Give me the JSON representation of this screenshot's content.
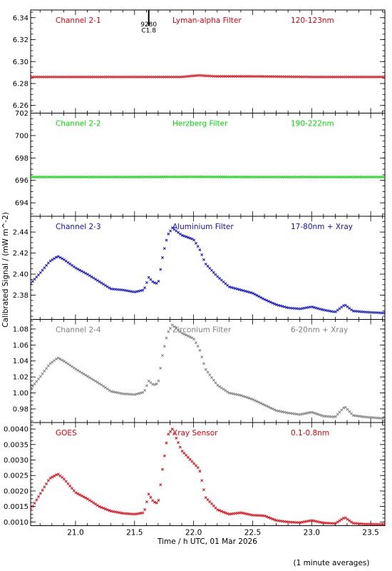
{
  "figure": {
    "xlabel": "Time / h UTC, 01 Mar 2026",
    "ylabel": "Calibrated Signal / (mW m^-2)",
    "footnote": "(1 minute averages)",
    "xlim": [
      20.62,
      23.62
    ],
    "xticks": [
      21.0,
      21.5,
      22.0,
      22.5,
      23.0,
      23.5
    ],
    "xtick_labels": [
      "21.0",
      "21.5",
      "22.0",
      "22.5",
      "23.0",
      "23.5"
    ],
    "flare_marker": {
      "x": 21.62,
      "labels": [
        "9280",
        "C1.8"
      ]
    }
  },
  "chart_data": [
    {
      "type": "scatter",
      "labels": [
        "Channel 2-1",
        "Lyman-alpha Filter",
        "120-123nm"
      ],
      "color": "#e8000b",
      "ylim": [
        6.253,
        6.347
      ],
      "yticks": [
        6.26,
        6.28,
        6.3,
        6.32,
        6.34
      ],
      "ytick_labels": [
        "6.26",
        "6.28",
        "6.30",
        "6.32",
        "6.34"
      ],
      "series": {
        "x": [
          20.62,
          21.0,
          21.5,
          21.9,
          22.0,
          22.05,
          22.1,
          22.2,
          22.5,
          23.0,
          23.5,
          23.62
        ],
        "y": [
          6.286,
          6.286,
          6.286,
          6.286,
          6.287,
          6.2875,
          6.287,
          6.2865,
          6.2865,
          6.286,
          6.286,
          6.286
        ]
      }
    },
    {
      "type": "scatter",
      "labels": [
        "Channel 2-2",
        "Herzberg Filter",
        "190-222nm"
      ],
      "color": "#00dd00",
      "ylim": [
        692.8,
        702.0
      ],
      "yticks": [
        694,
        696,
        698,
        700,
        702
      ],
      "ytick_labels": [
        "694",
        "696",
        "698",
        "700",
        "702"
      ],
      "series": {
        "x": [
          20.62,
          21.0,
          21.5,
          22.0,
          22.5,
          23.0,
          23.5,
          23.62
        ],
        "y": [
          696.3,
          696.3,
          696.3,
          696.32,
          696.3,
          696.3,
          696.3,
          696.3
        ]
      }
    },
    {
      "type": "scatter",
      "labels": [
        "Channel 2-3",
        "Aluminium Filter",
        "17-80nm + Xray"
      ],
      "color": "#1010cc",
      "ylim": [
        2.357,
        2.455
      ],
      "yticks": [
        2.38,
        2.4,
        2.42,
        2.44
      ],
      "ytick_labels": [
        "2.38",
        "2.40",
        "2.42",
        "2.44"
      ],
      "series": {
        "x": [
          20.62,
          20.7,
          20.78,
          20.85,
          20.9,
          21.0,
          21.1,
          21.2,
          21.3,
          21.4,
          21.5,
          21.58,
          21.62,
          21.66,
          21.7,
          21.74,
          21.78,
          21.82,
          21.9,
          22.0,
          22.05,
          22.1,
          22.2,
          22.3,
          22.4,
          22.5,
          22.6,
          22.7,
          22.8,
          22.9,
          23.0,
          23.1,
          23.2,
          23.28,
          23.35,
          23.45,
          23.62
        ],
        "y": [
          2.391,
          2.401,
          2.412,
          2.417,
          2.414,
          2.406,
          2.4,
          2.393,
          2.386,
          2.385,
          2.383,
          2.385,
          2.397,
          2.392,
          2.391,
          2.418,
          2.437,
          2.444,
          2.437,
          2.433,
          2.424,
          2.41,
          2.398,
          2.388,
          2.385,
          2.382,
          2.376,
          2.371,
          2.368,
          2.367,
          2.369,
          2.366,
          2.364,
          2.371,
          2.365,
          2.364,
          2.363
        ]
      }
    },
    {
      "type": "scatter",
      "labels": [
        "Channel 2-4",
        "Zirconium Filter",
        "6-20nm + Xray"
      ],
      "color": "#808080",
      "ylim": [
        0.963,
        1.092
      ],
      "yticks": [
        0.98,
        1.0,
        1.02,
        1.04,
        1.06,
        1.08
      ],
      "ytick_labels": [
        "0.98",
        "1.00",
        "1.02",
        "1.04",
        "1.06",
        "1.08"
      ],
      "series": {
        "x": [
          20.62,
          20.7,
          20.78,
          20.85,
          20.9,
          21.0,
          21.1,
          21.2,
          21.3,
          21.4,
          21.5,
          21.58,
          21.62,
          21.66,
          21.7,
          21.74,
          21.78,
          21.82,
          21.9,
          22.0,
          22.05,
          22.1,
          22.2,
          22.3,
          22.4,
          22.5,
          22.6,
          22.7,
          22.8,
          22.9,
          23.0,
          23.1,
          23.2,
          23.28,
          23.35,
          23.45,
          23.62
        ],
        "y": [
          1.005,
          1.02,
          1.036,
          1.044,
          1.04,
          1.03,
          1.021,
          1.012,
          1.002,
          0.999,
          0.998,
          1.001,
          1.015,
          1.01,
          1.012,
          1.05,
          1.075,
          1.085,
          1.075,
          1.068,
          1.055,
          1.03,
          1.01,
          1.0,
          0.997,
          0.992,
          0.985,
          0.978,
          0.975,
          0.973,
          0.976,
          0.971,
          0.97,
          0.983,
          0.972,
          0.97,
          0.968
        ]
      }
    },
    {
      "type": "scatter",
      "labels": [
        "GOES",
        "Xray Sensor",
        "0.1-0.8nm"
      ],
      "color": "#e8000b",
      "ylim": [
        0.00088,
        0.00421
      ],
      "yticks": [
        0.001,
        0.0015,
        0.002,
        0.0025,
        0.003,
        0.0035,
        0.004
      ],
      "ytick_labels": [
        "0.0010",
        "0.0015",
        "0.0020",
        "0.0025",
        "0.0030",
        "0.0035",
        "0.0040"
      ],
      "series": {
        "x": [
          20.62,
          20.7,
          20.78,
          20.85,
          20.9,
          21.0,
          21.1,
          21.2,
          21.3,
          21.4,
          21.5,
          21.58,
          21.62,
          21.66,
          21.7,
          21.74,
          21.78,
          21.82,
          21.9,
          22.0,
          22.05,
          22.1,
          22.2,
          22.3,
          22.4,
          22.5,
          22.6,
          22.7,
          22.8,
          22.9,
          23.0,
          23.1,
          23.2,
          23.28,
          23.35,
          23.45,
          23.62
        ],
        "y": [
          0.0014,
          0.0019,
          0.0024,
          0.00255,
          0.0024,
          0.00195,
          0.00175,
          0.0015,
          0.00135,
          0.00128,
          0.00125,
          0.0013,
          0.0019,
          0.00165,
          0.0016,
          0.0028,
          0.0038,
          0.004,
          0.0033,
          0.0029,
          0.0027,
          0.0018,
          0.0014,
          0.00125,
          0.0013,
          0.00122,
          0.0012,
          0.00105,
          0.001,
          0.00098,
          0.00105,
          0.00097,
          0.00095,
          0.00115,
          0.00096,
          0.00093,
          0.00092
        ]
      }
    }
  ]
}
